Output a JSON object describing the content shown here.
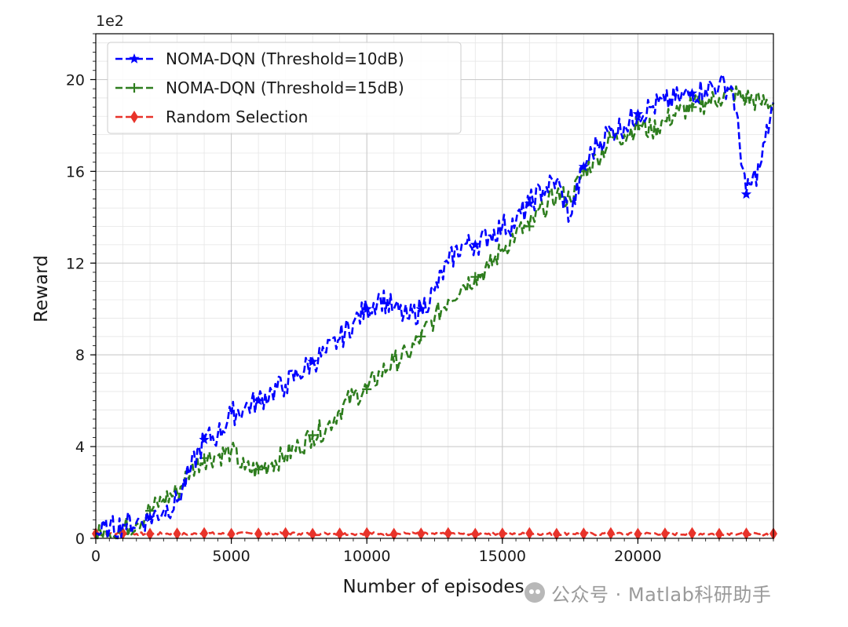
{
  "chart_data": {
    "type": "line",
    "title": "",
    "xlabel": "Number of episodes",
    "ylabel": "Reward",
    "y_multiplier": "1e2",
    "xlim": [
      0,
      25000
    ],
    "ylim": [
      0,
      2200
    ],
    "x_ticks": [
      0,
      5000,
      10000,
      15000,
      20000
    ],
    "x_tick_labels": [
      "0",
      "5000",
      "10000",
      "15000",
      "20000"
    ],
    "y_ticks": [
      0,
      400,
      800,
      1200,
      1600,
      2000
    ],
    "y_tick_labels": [
      "0",
      "4",
      "8",
      "12",
      "16",
      "20"
    ],
    "grid": true,
    "legend_position": "top-left",
    "x": [
      0,
      500,
      1000,
      1500,
      2000,
      2500,
      3000,
      3500,
      4000,
      4500,
      5000,
      5500,
      6000,
      6500,
      7000,
      7500,
      8000,
      8500,
      9000,
      9500,
      10000,
      10500,
      11000,
      11500,
      12000,
      12500,
      13000,
      13500,
      14000,
      14500,
      15000,
      15500,
      16000,
      16500,
      17000,
      17500,
      18000,
      18500,
      19000,
      19500,
      20000,
      20500,
      21000,
      21500,
      22000,
      22500,
      23000,
      23500,
      24000,
      24500,
      25000
    ],
    "series": [
      {
        "name": "NOMA-DQN (Threshold=10dB)",
        "color": "#0000ff",
        "marker": "star",
        "values": [
          20,
          40,
          60,
          70,
          90,
          120,
          160,
          300,
          430,
          450,
          540,
          570,
          600,
          640,
          670,
          720,
          770,
          810,
          870,
          940,
          1000,
          1050,
          1000,
          960,
          1000,
          1080,
          1200,
          1280,
          1280,
          1320,
          1360,
          1380,
          1460,
          1520,
          1560,
          1400,
          1620,
          1720,
          1780,
          1800,
          1850,
          1880,
          1900,
          1920,
          1940,
          1960,
          1980,
          1960,
          1500,
          1620,
          1900
        ]
      },
      {
        "name": "NOMA-DQN (Threshold=15dB)",
        "color": "#2e7d1e",
        "marker": "plus",
        "values": [
          10,
          20,
          40,
          70,
          120,
          170,
          200,
          300,
          350,
          360,
          380,
          300,
          300,
          330,
          360,
          400,
          450,
          480,
          560,
          620,
          650,
          720,
          770,
          800,
          880,
          960,
          1040,
          1100,
          1140,
          1180,
          1260,
          1330,
          1360,
          1440,
          1500,
          1480,
          1600,
          1660,
          1740,
          1760,
          1800,
          1780,
          1820,
          1860,
          1880,
          1900,
          1920,
          1940,
          1920,
          1900,
          1900
        ]
      },
      {
        "name": "Random Selection",
        "color": "#e8332a",
        "marker": "diamond",
        "values": [
          20,
          18,
          22,
          20,
          19,
          21,
          20,
          18,
          22,
          20,
          19,
          21,
          20,
          18,
          22,
          20,
          19,
          21,
          20,
          18,
          22,
          20,
          19,
          21,
          20,
          18,
          22,
          20,
          19,
          21,
          20,
          18,
          22,
          20,
          19,
          21,
          20,
          18,
          22,
          20,
          19,
          21,
          20,
          18,
          22,
          20,
          19,
          21,
          20,
          18,
          20
        ]
      }
    ]
  },
  "watermark": {
    "icon": "wechat-icon",
    "text": "公众号 · Matlab科研助手"
  }
}
